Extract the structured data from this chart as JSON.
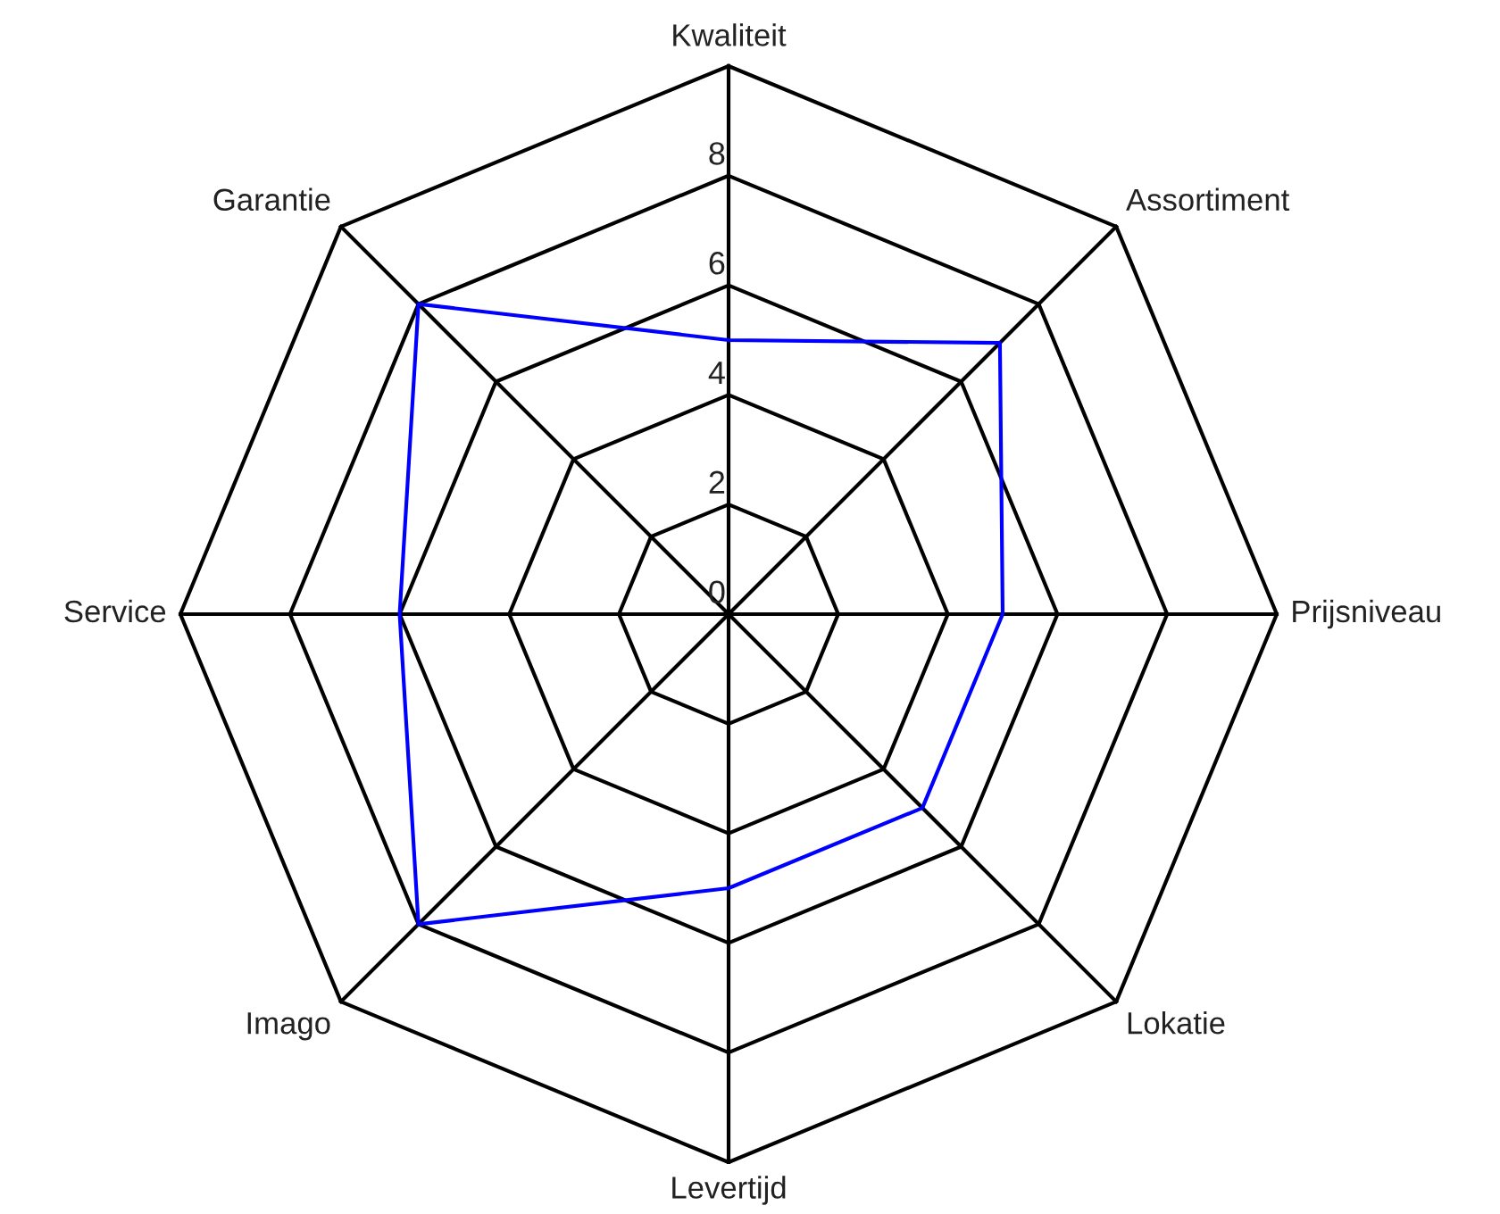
{
  "chart_data": {
    "type": "radar",
    "categories": [
      "Kwaliteit",
      "Assortiment",
      "Prijsniveau",
      "Lokatie",
      "Levertijd",
      "Imago",
      "Service",
      "Garantie"
    ],
    "series": [
      {
        "color": "#0000ff",
        "values": [
          5,
          7,
          5,
          5,
          5,
          8,
          6,
          8
        ]
      }
    ],
    "ylim": [
      0,
      10
    ],
    "yticks": [
      0,
      2,
      4,
      6,
      8
    ],
    "grid": true,
    "marker": "none",
    "line_style": "solid"
  }
}
